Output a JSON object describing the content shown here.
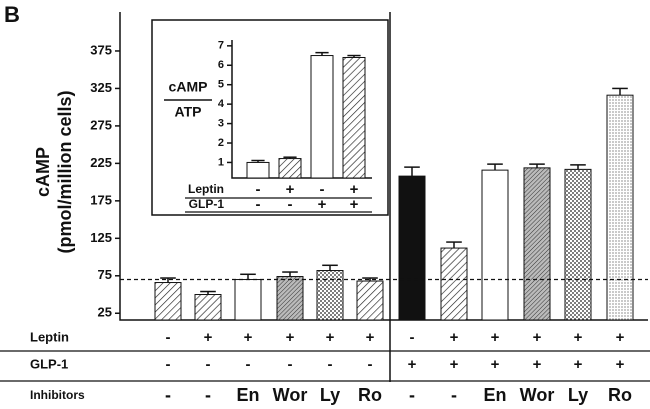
{
  "panel_label": "B",
  "chart_data": [
    {
      "type": "bar",
      "ylabel": [
        "cAMP",
        "(pmol/million cells)"
      ],
      "ylim": [
        16,
        427
      ],
      "yticks": [
        25,
        75,
        125,
        175,
        225,
        275,
        325,
        375
      ],
      "values": [
        66,
        50,
        70,
        74,
        82,
        68,
        208,
        112,
        216,
        219,
        217,
        316
      ],
      "errors": [
        6,
        4,
        7,
        6,
        7,
        4,
        12,
        8,
        8,
        5,
        6,
        9
      ],
      "patterns": [
        "hatch",
        "hatch",
        "white",
        "dense",
        "dots",
        "hatch",
        "black",
        "hatch",
        "white",
        "dense",
        "dots",
        "fine-dots"
      ],
      "reference_line": 70,
      "rows": [
        {
          "name": "Leptin",
          "labels": [
            "-",
            "+",
            "+",
            "+",
            "+",
            "+",
            "-",
            "+",
            "+",
            "+",
            "+",
            "+"
          ]
        },
        {
          "name": "GLP-1",
          "labels": [
            "-",
            "-",
            "-",
            "-",
            "-",
            "-",
            "+",
            "+",
            "+",
            "+",
            "+",
            "+"
          ]
        },
        {
          "name": "Inhibitors",
          "labels": [
            "-",
            "-",
            "En",
            "Wor",
            "Ly",
            "Ro",
            "-",
            "-",
            "En",
            "Wor",
            "Ly",
            "Ro"
          ]
        }
      ]
    },
    {
      "type": "bar",
      "ylabel": [
        "cAMP",
        "ATP"
      ],
      "ylim": [
        0.2,
        7.3
      ],
      "yticks": [
        1,
        2,
        3,
        4,
        5,
        6,
        7
      ],
      "values": [
        1.0,
        1.2,
        6.5,
        6.4
      ],
      "errors": [
        0.1,
        0.07,
        0.15,
        0.1
      ],
      "patterns": [
        "white",
        "hatch",
        "white",
        "hatch"
      ],
      "rows": [
        {
          "name": "Leptin",
          "labels": [
            "-",
            "+",
            "-",
            "+"
          ]
        },
        {
          "name": "GLP-1",
          "labels": [
            "-",
            "-",
            "+",
            "+"
          ]
        }
      ]
    }
  ]
}
